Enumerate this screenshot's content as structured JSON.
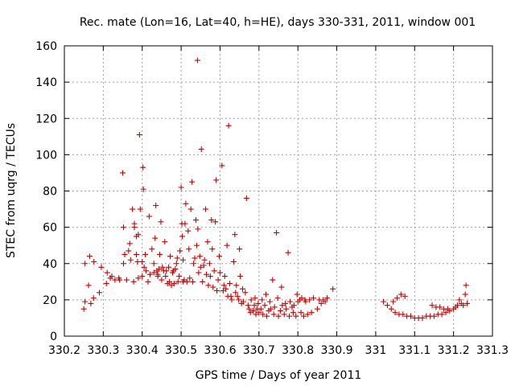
{
  "chart_data": {
    "type": "scatter",
    "title": "Rec. mate (Lon=16, Lat=40, h=HE), days 330-331, 2011, window 001",
    "xlabel": "GPS time / Days of year 2011",
    "ylabel": "STEC from uqrg / TECUs",
    "xlim": [
      330.2,
      331.3
    ],
    "ylim": [
      0,
      160
    ],
    "xticks": [
      "330.2",
      "330.3",
      "330.4",
      "330.5",
      "330.6",
      "330.7",
      "330.8",
      "330.9",
      "331",
      "331.1",
      "331.2",
      "331.3"
    ],
    "yticks": [
      "0",
      "20",
      "40",
      "60",
      "80",
      "100",
      "120",
      "140",
      "160"
    ],
    "grid": true,
    "marker": "+",
    "color": "#cc0000",
    "series": [
      {
        "points": [
          [
            330.25,
            15
          ],
          [
            330.253,
            19
          ],
          [
            330.253,
            40
          ],
          [
            330.262,
            28
          ],
          [
            330.265,
            44
          ],
          [
            330.268,
            18
          ],
          [
            330.275,
            21
          ],
          [
            330.276,
            41
          ],
          [
            330.29,
            24
          ],
          [
            330.295,
            38
          ],
          [
            330.308,
            29
          ],
          [
            330.31,
            35
          ],
          [
            330.318,
            32
          ],
          [
            330.322,
            33
          ],
          [
            330.33,
            31
          ],
          [
            330.34,
            32
          ],
          [
            330.342,
            31
          ],
          [
            330.35,
            90
          ],
          [
            330.352,
            60
          ],
          [
            330.352,
            40
          ],
          [
            330.355,
            45
          ],
          [
            330.36,
            31
          ],
          [
            330.365,
            47
          ],
          [
            330.368,
            51
          ],
          [
            330.37,
            42
          ],
          [
            330.375,
            70
          ],
          [
            330.378,
            30
          ],
          [
            330.38,
            60
          ],
          [
            330.38,
            62
          ],
          [
            330.385,
            55
          ],
          [
            330.385,
            45
          ],
          [
            330.388,
            41
          ],
          [
            330.39,
            32
          ],
          [
            330.39,
            56
          ],
          [
            330.393,
            111
          ],
          [
            330.395,
            70
          ],
          [
            330.4,
            41
          ],
          [
            330.4,
            33
          ],
          [
            330.402,
            93
          ],
          [
            330.403,
            81
          ],
          [
            330.405,
            38
          ],
          [
            330.408,
            45
          ],
          [
            330.41,
            36
          ],
          [
            330.415,
            30
          ],
          [
            330.418,
            66
          ],
          [
            330.42,
            34
          ],
          [
            330.425,
            48
          ],
          [
            330.43,
            40
          ],
          [
            330.43,
            35
          ],
          [
            330.433,
            54
          ],
          [
            330.435,
            72
          ],
          [
            330.438,
            36
          ],
          [
            330.44,
            34
          ],
          [
            330.44,
            33
          ],
          [
            330.443,
            37
          ],
          [
            330.445,
            45
          ],
          [
            330.448,
            63
          ],
          [
            330.45,
            31
          ],
          [
            330.452,
            38
          ],
          [
            330.455,
            36
          ],
          [
            330.458,
            52
          ],
          [
            330.46,
            33
          ],
          [
            330.462,
            36
          ],
          [
            330.465,
            29
          ],
          [
            330.468,
            38
          ],
          [
            330.47,
            30
          ],
          [
            330.472,
            44
          ],
          [
            330.475,
            28
          ],
          [
            330.478,
            35
          ],
          [
            330.48,
            36
          ],
          [
            330.482,
            29
          ],
          [
            330.485,
            37
          ],
          [
            330.488,
            40
          ],
          [
            330.49,
            43
          ],
          [
            330.492,
            30
          ],
          [
            330.495,
            33
          ],
          [
            330.497,
            47
          ],
          [
            330.5,
            82
          ],
          [
            330.502,
            62
          ],
          [
            330.503,
            55
          ],
          [
            330.505,
            42
          ],
          [
            330.505,
            30
          ],
          [
            330.508,
            31
          ],
          [
            330.51,
            62
          ],
          [
            330.512,
            73
          ],
          [
            330.515,
            30
          ],
          [
            330.518,
            58
          ],
          [
            330.52,
            48
          ],
          [
            330.522,
            32
          ],
          [
            330.525,
            70
          ],
          [
            330.528,
            85
          ],
          [
            330.53,
            30
          ],
          [
            330.532,
            40
          ],
          [
            330.535,
            43
          ],
          [
            330.538,
            64
          ],
          [
            330.54,
            50
          ],
          [
            330.542,
            152
          ],
          [
            330.543,
            59
          ],
          [
            330.545,
            35
          ],
          [
            330.548,
            44
          ],
          [
            330.55,
            38
          ],
          [
            330.552,
            103
          ],
          [
            330.555,
            30
          ],
          [
            330.558,
            39
          ],
          [
            330.56,
            42
          ],
          [
            330.563,
            70
          ],
          [
            330.565,
            34
          ],
          [
            330.568,
            52
          ],
          [
            330.57,
            28
          ],
          [
            330.573,
            40
          ],
          [
            330.575,
            33
          ],
          [
            330.578,
            64
          ],
          [
            330.58,
            48
          ],
          [
            330.582,
            27
          ],
          [
            330.585,
            36
          ],
          [
            330.588,
            63
          ],
          [
            330.59,
            86
          ],
          [
            330.592,
            25
          ],
          [
            330.595,
            31
          ],
          [
            330.598,
            44
          ],
          [
            330.6,
            35
          ],
          [
            330.605,
            94
          ],
          [
            330.608,
            25
          ],
          [
            330.61,
            28
          ],
          [
            330.612,
            33
          ],
          [
            330.615,
            26
          ],
          [
            330.618,
            50
          ],
          [
            330.62,
            22
          ],
          [
            330.622,
            116
          ],
          [
            330.625,
            29
          ],
          [
            330.628,
            22
          ],
          [
            330.63,
            20
          ],
          [
            330.635,
            41
          ],
          [
            330.638,
            56
          ],
          [
            330.64,
            24
          ],
          [
            330.642,
            28
          ],
          [
            330.645,
            22
          ],
          [
            330.648,
            20
          ],
          [
            330.65,
            48
          ],
          [
            330.652,
            33
          ],
          [
            330.655,
            18
          ],
          [
            330.658,
            26
          ],
          [
            330.66,
            19
          ],
          [
            330.665,
            24
          ],
          [
            330.668,
            76
          ],
          [
            330.672,
            17
          ],
          [
            330.675,
            15
          ],
          [
            330.678,
            13
          ],
          [
            330.68,
            20
          ],
          [
            330.685,
            14
          ],
          [
            330.688,
            17
          ],
          [
            330.69,
            21
          ],
          [
            330.692,
            12
          ],
          [
            330.695,
            15
          ],
          [
            330.698,
            18
          ],
          [
            330.7,
            13
          ],
          [
            330.705,
            15
          ],
          [
            330.708,
            20
          ],
          [
            330.71,
            12
          ],
          [
            330.715,
            17
          ],
          [
            330.718,
            23
          ],
          [
            330.72,
            11
          ],
          [
            330.725,
            14
          ],
          [
            330.728,
            19
          ],
          [
            330.73,
            15
          ],
          [
            330.735,
            31
          ],
          [
            330.738,
            12
          ],
          [
            330.74,
            16
          ],
          [
            330.745,
            57
          ],
          [
            330.748,
            21
          ],
          [
            330.75,
            11
          ],
          [
            330.755,
            14
          ],
          [
            330.758,
            27
          ],
          [
            330.76,
            17
          ],
          [
            330.765,
            12
          ],
          [
            330.768,
            18
          ],
          [
            330.77,
            15
          ],
          [
            330.775,
            46
          ],
          [
            330.778,
            11
          ],
          [
            330.78,
            19
          ],
          [
            330.785,
            16
          ],
          [
            330.788,
            13
          ],
          [
            330.79,
            17
          ],
          [
            330.795,
            11
          ],
          [
            330.798,
            23
          ],
          [
            330.8,
            19
          ],
          [
            330.805,
            20
          ],
          [
            330.808,
            13
          ],
          [
            330.81,
            21
          ],
          [
            330.815,
            11
          ],
          [
            330.818,
            20
          ],
          [
            330.82,
            19
          ],
          [
            330.825,
            12
          ],
          [
            330.83,
            20
          ],
          [
            330.835,
            13
          ],
          [
            330.84,
            21
          ],
          [
            330.85,
            15
          ],
          [
            330.855,
            20
          ],
          [
            330.86,
            18
          ],
          [
            330.865,
            20
          ],
          [
            330.87,
            19
          ],
          [
            330.875,
            21
          ],
          [
            330.89,
            26
          ],
          [
            331.02,
            19
          ],
          [
            331.03,
            17
          ],
          [
            331.04,
            15
          ],
          [
            331.045,
            19
          ],
          [
            331.05,
            13
          ],
          [
            331.055,
            21
          ],
          [
            331.06,
            12
          ],
          [
            331.065,
            23
          ],
          [
            331.07,
            12
          ],
          [
            331.075,
            22
          ],
          [
            331.08,
            11
          ],
          [
            331.09,
            11
          ],
          [
            331.1,
            10
          ],
          [
            331.11,
            10
          ],
          [
            331.12,
            10
          ],
          [
            331.13,
            11
          ],
          [
            331.14,
            11
          ],
          [
            331.145,
            17
          ],
          [
            331.15,
            11
          ],
          [
            331.155,
            16
          ],
          [
            331.16,
            12
          ],
          [
            331.165,
            16
          ],
          [
            331.17,
            12
          ],
          [
            331.175,
            15
          ],
          [
            331.18,
            13
          ],
          [
            331.185,
            15
          ],
          [
            331.19,
            14
          ],
          [
            331.2,
            15
          ],
          [
            331.205,
            16
          ],
          [
            331.21,
            17
          ],
          [
            331.215,
            20
          ],
          [
            331.22,
            18
          ],
          [
            331.225,
            17
          ],
          [
            331.23,
            23
          ],
          [
            331.232,
            28
          ],
          [
            331.235,
            18
          ]
        ]
      }
    ]
  }
}
